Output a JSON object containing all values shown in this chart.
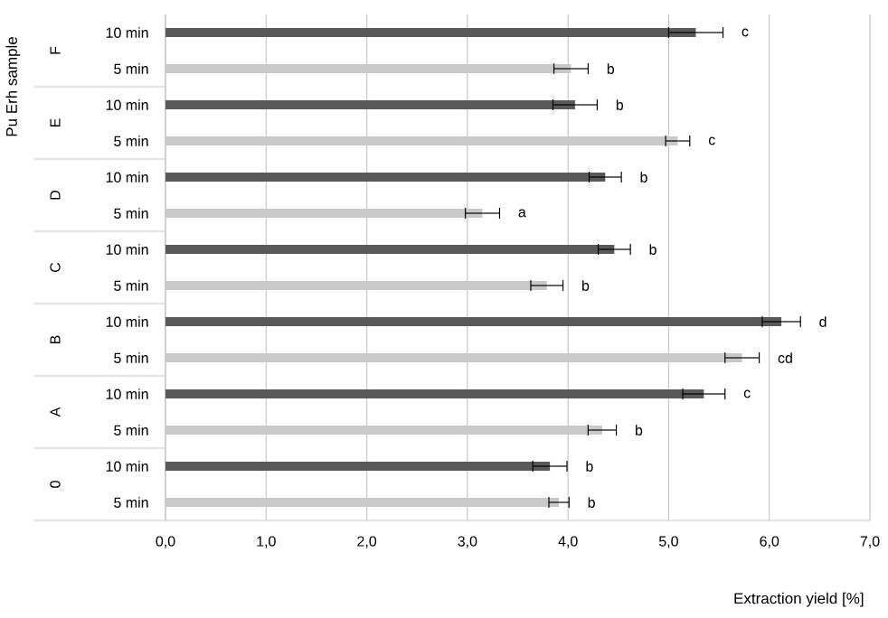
{
  "chart_data": {
    "type": "bar",
    "orientation": "horizontal",
    "categories": [
      "F",
      "E",
      "D",
      "C",
      "B",
      "A",
      "0"
    ],
    "series": [
      {
        "name": "10 min",
        "color": "#595959",
        "values": [
          5.27,
          4.07,
          4.37,
          4.46,
          6.12,
          5.35,
          3.82
        ],
        "errors": [
          0.27,
          0.22,
          0.16,
          0.16,
          0.19,
          0.21,
          0.17
        ],
        "value_labels": [
          "c",
          "b",
          "b",
          "b",
          "d",
          "c",
          "b"
        ]
      },
      {
        "name": "5 min",
        "color": "#c8c8c8",
        "values": [
          4.03,
          5.09,
          3.15,
          3.79,
          5.73,
          4.34,
          3.91
        ],
        "errors": [
          0.17,
          0.12,
          0.17,
          0.16,
          0.17,
          0.14,
          0.1
        ],
        "value_labels": [
          "b",
          "c",
          "a",
          "b",
          "cd",
          "b",
          "b"
        ]
      }
    ],
    "xlim": [
      0,
      7
    ],
    "xticks": [
      {
        "value": 0,
        "label": "0,0"
      },
      {
        "value": 1,
        "label": "1,0"
      },
      {
        "value": 2,
        "label": "2,0"
      },
      {
        "value": 3,
        "label": "3,0"
      },
      {
        "value": 4,
        "label": "4,0"
      },
      {
        "value": 5,
        "label": "5,0"
      },
      {
        "value": 6,
        "label": "6,0"
      },
      {
        "value": 7,
        "label": "7,0"
      }
    ],
    "xlabel": "Extraction yield [%]",
    "ylabel": "Pu Erh sample",
    "grid": "x"
  }
}
